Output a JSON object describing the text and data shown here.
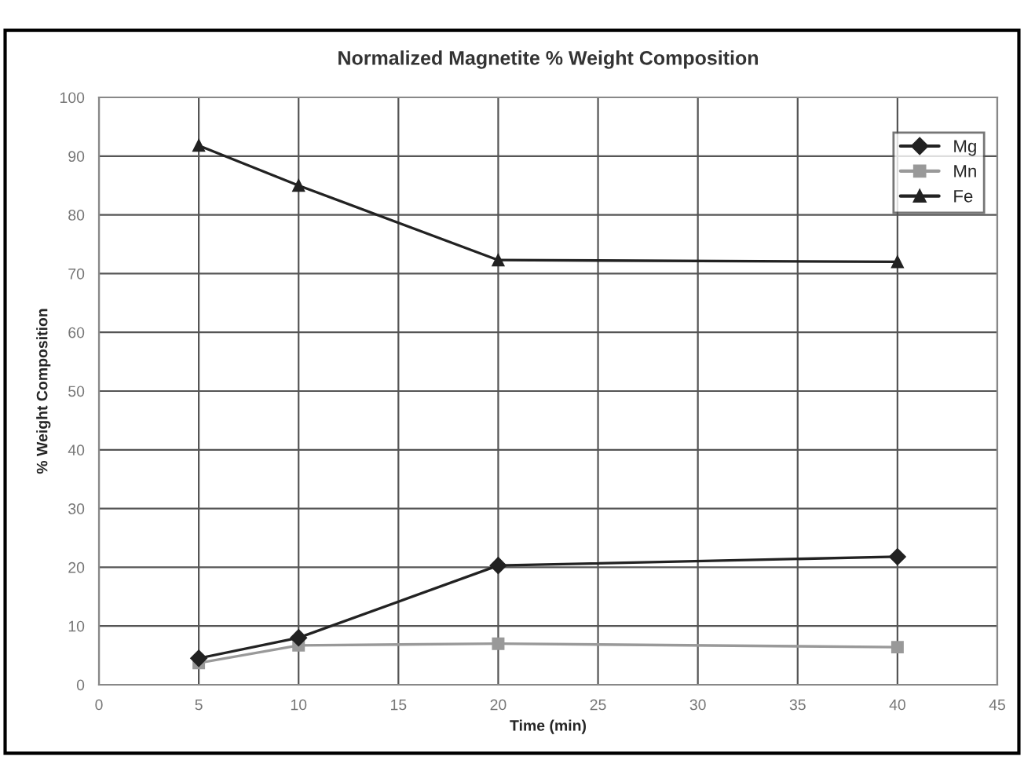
{
  "chart_data": {
    "type": "line",
    "title": "Normalized Magnetite % Weight Composition",
    "xlabel": "Time (min)",
    "ylabel": "% Weight Composition",
    "x": [
      5,
      10,
      20,
      40
    ],
    "series": [
      {
        "name": "Mg",
        "color": "#222222",
        "marker": "diamond",
        "values": [
          4.5,
          8,
          20.3,
          21.8
        ]
      },
      {
        "name": "Mn",
        "color": "#999999",
        "marker": "square",
        "values": [
          3.7,
          6.7,
          7,
          6.4
        ]
      },
      {
        "name": "Fe",
        "color": "#222222",
        "marker": "triangle",
        "values": [
          91.8,
          85,
          72.3,
          72
        ]
      }
    ],
    "xlim": [
      0,
      45
    ],
    "xticks": [
      0,
      5,
      10,
      15,
      20,
      25,
      30,
      35,
      40,
      45
    ],
    "ylim": [
      0,
      100
    ],
    "yticks": [
      0,
      10,
      20,
      30,
      40,
      50,
      60,
      70,
      80,
      90,
      100
    ],
    "grid": true,
    "legend": "top right",
    "line_style": "solid"
  }
}
